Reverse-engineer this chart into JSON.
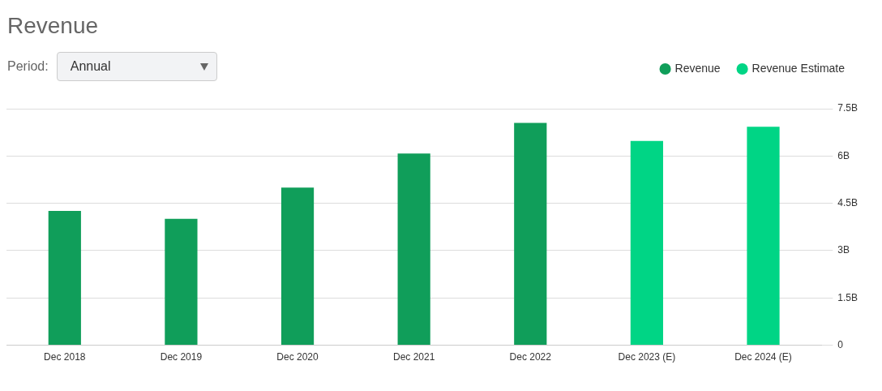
{
  "chart_data": {
    "type": "bar",
    "title": "Revenue",
    "annotations": [
      "Period:",
      "Annual"
    ],
    "categories": [
      "Dec 2018",
      "Dec 2019",
      "Dec 2020",
      "Dec 2021",
      "Dec 2022",
      "Dec 2023 (E)",
      "Dec 2024 (E)"
    ],
    "series": [
      {
        "name": "Revenue",
        "color": "#109e5a",
        "values": [
          4.26,
          4.01,
          5.0,
          6.08,
          7.05,
          null,
          null
        ]
      },
      {
        "name": "Revenue Estimate",
        "color": "#00d585",
        "values": [
          null,
          null,
          null,
          null,
          null,
          6.48,
          6.93
        ]
      }
    ],
    "ylim": [
      0,
      7.5
    ],
    "yticks": [
      0,
      {
        "value": 1.5,
        "label": "1.5B"
      },
      {
        "value": 3,
        "label": "3B"
      },
      {
        "value": 4.5,
        "label": "4.5B"
      },
      {
        "value": 6,
        "label": "6B"
      },
      {
        "value": 7.5,
        "label": "7.5B"
      }
    ],
    "grid": "y",
    "legend": "top right"
  }
}
